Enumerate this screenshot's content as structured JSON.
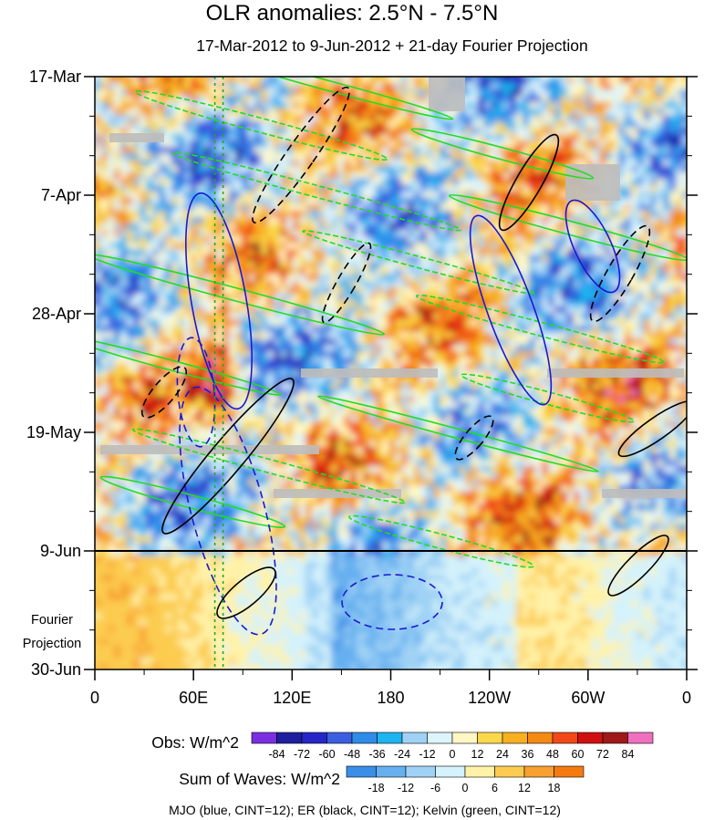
{
  "title": "OLR anomalies: 2.5°N - 7.5°N",
  "subtitle": "17-Mar-2012 to 9-Jun-2012 + 21-day Fourier Projection",
  "chart_data": {
    "type": "heatmap",
    "title": "OLR anomalies: 2.5°N - 7.5°N",
    "subtitle": "17-Mar-2012 to 9-Jun-2012 + 21-day Fourier Projection",
    "x_ticks": [
      "0",
      "60E",
      "120E",
      "180",
      "120W",
      "60W",
      "0"
    ],
    "x_tick_lon": [
      0,
      60,
      120,
      180,
      240,
      300,
      360
    ],
    "y_ticks": [
      "17-Mar",
      "7-Apr",
      "28-Apr",
      "19-May",
      "9-Jun",
      "30-Jun"
    ],
    "y_tick_day": [
      0,
      21,
      42,
      63,
      84,
      105
    ],
    "y_range_days": [
      0,
      105
    ],
    "observation_end_day": 84,
    "projection_label": [
      "Fourier",
      "Projection"
    ],
    "reference_lines_lon": [
      73,
      78
    ],
    "obs_colorbar": {
      "label": "Obs: W/m^2",
      "levels": [
        -84,
        -72,
        -60,
        -48,
        -36,
        -24,
        -12,
        0,
        12,
        24,
        36,
        48,
        60,
        72,
        84
      ],
      "colors": [
        "#7b2fe0",
        "#1e1e9e",
        "#2626c8",
        "#3b5ee0",
        "#2f8ce8",
        "#1eb4f0",
        "#9fd2f5",
        "#dcf4fb",
        "#fff8c4",
        "#fad84a",
        "#f8b020",
        "#f48a12",
        "#f24818",
        "#d01010",
        "#a01818",
        "#f070c0"
      ]
    },
    "waves_colorbar": {
      "label": "Sum of Waves: W/m^2",
      "levels": [
        -18,
        -12,
        -6,
        0,
        6,
        12,
        18
      ],
      "colors": [
        "#3a8ee8",
        "#66b0f0",
        "#9fd2f5",
        "#d4f2fb",
        "#fff2a8",
        "#fccc50",
        "#f8a030",
        "#f47a10"
      ]
    },
    "series": [
      {
        "name": "MJO",
        "color": "#1a1ad0",
        "cint": 12
      },
      {
        "name": "ER",
        "color": "#000000",
        "cint": 12
      },
      {
        "name": "Kelvin",
        "color": "#22dd22",
        "cint": 12
      }
    ],
    "footer": "MJO (blue, CINT=12); ER (black, CINT=12); Kelvin (green, CINT=12)"
  }
}
